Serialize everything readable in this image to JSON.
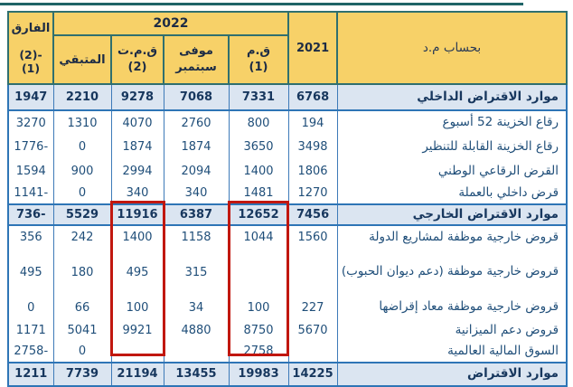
{
  "table": {
    "unit_header": "بحساب م.د",
    "col_2021": "2021",
    "col_2022": "2022",
    "col_diff": {
      "title": "الفارق",
      "sub": "(2)-(1)"
    },
    "subcols": {
      "remaining": "المتبقي",
      "qmt": "ق.م.ت",
      "qmt_sub": "(2)",
      "sept_line1": "موفى",
      "sept_line2": "سبتمبر",
      "qm": "ق.م",
      "qm_sub": "(1)"
    },
    "rows": [
      {
        "label": "موارد الاقتراض الداخلي",
        "y2021": "6768",
        "qm": "7331",
        "sept": "7068",
        "qmt": "9278",
        "remaining": "2210",
        "diff": "1947",
        "section": true
      },
      {
        "label": "رقاع الخزينة 52 أسبوع",
        "y2021": "194",
        "qm": "800",
        "sept": "2760",
        "qmt": "4070",
        "remaining": "1310",
        "diff": "3270",
        "section": false
      },
      {
        "label": "رقاع الخزينة القابلة للتنظير",
        "y2021": "3498",
        "qm": "3650",
        "sept": "1874",
        "qmt": "1874",
        "remaining": "0",
        "diff": "1776-",
        "section": false
      },
      {
        "label": "القرض الرقاعي الوطني",
        "y2021": "1806",
        "qm": "1400",
        "sept": "2094",
        "qmt": "2994",
        "remaining": "900",
        "diff": "1594",
        "section": false
      },
      {
        "label": "قرض داخلي بالعملة",
        "y2021": "1270",
        "qm": "1481",
        "sept": "340",
        "qmt": "340",
        "remaining": "0",
        "diff": "1141-",
        "section": false
      },
      {
        "label": "موارد الاقتراض الخارجي",
        "y2021": "7456",
        "qm": "12652",
        "sept": "6387",
        "qmt": "11916",
        "remaining": "5529",
        "diff": "736-",
        "section": true
      },
      {
        "label": "قروض خارجية موظفة لمشاريع الدولة",
        "y2021": "1560",
        "qm": "1044",
        "sept": "1158",
        "qmt": "1400",
        "remaining": "242",
        "diff": "356",
        "section": false
      },
      {
        "label": "قروض خارجية موظفة (دعم ديوان الحبوب)",
        "y2021": "",
        "qm": "",
        "sept": "315",
        "qmt": "495",
        "remaining": "180",
        "diff": "495",
        "section": false
      },
      {
        "label": "قروض خارجية موظفة معاد إقراضها",
        "y2021": "227",
        "qm": "100",
        "sept": "34",
        "qmt": "100",
        "remaining": "66",
        "diff": "0",
        "section": false
      },
      {
        "label": "قروض دعم الميزانية",
        "y2021": "5670",
        "qm": "8750",
        "sept": "4880",
        "qmt": "9921",
        "remaining": "5041",
        "diff": "1171",
        "section": false
      },
      {
        "label": "السوق المالية العالمية",
        "y2021": "",
        "qm": "2758",
        "sept": "",
        "qmt": "",
        "remaining": "0",
        "diff": "2758-",
        "section": false
      },
      {
        "label": "موارد الاقتراض",
        "y2021": "14225",
        "qm": "19983",
        "sept": "13455",
        "qmt": "21194",
        "remaining": "7739",
        "diff": "1211",
        "section": true
      }
    ],
    "highlight": {
      "color": "#c1170f",
      "boxed_columns": [
        "ق.م.ت (2)",
        "ق.م (1)"
      ],
      "boxed_row_span": "موارد الاقتراض الخارجي → السوق المالية العالمية"
    }
  },
  "colors": {
    "header_bg": "#f7d168",
    "header_border": "#2f6f6f",
    "section_row_bg": "#dbe5f1",
    "table_border_blue": "#2e75b6",
    "text_navy": "#1f4e79",
    "top_line_teal": "#206467"
  }
}
